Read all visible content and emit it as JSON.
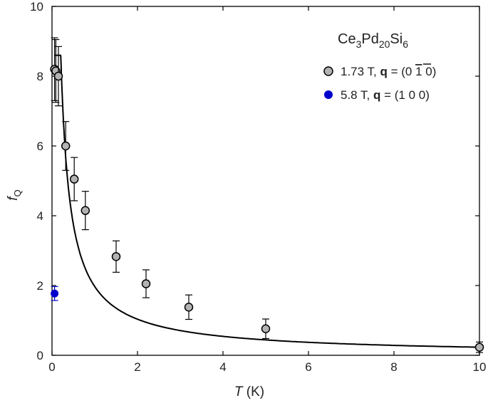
{
  "chart_data": {
    "type": "scatter",
    "xlabel": {
      "italic": "T",
      "rest": " (K)"
    },
    "ylabel": {
      "italic": "f",
      "sub": "Q"
    },
    "xlim": [
      0,
      10
    ],
    "ylim": [
      0,
      10
    ],
    "xticks": [
      0,
      2,
      4,
      6,
      8,
      10
    ],
    "yticks": [
      0,
      2,
      4,
      6,
      8,
      10
    ],
    "legend_title": {
      "base": "Ce",
      "s1": "3",
      "m1": "Pd",
      "s2": "20",
      "m2": "Si",
      "s3": "6"
    },
    "legend_placement": "top-right",
    "series": [
      {
        "label": {
          "prefix": "1.73 T, ",
          "bold": "q",
          "suffix_open": " = (0 ",
          "overline": "1",
          "suffix_close": " 0)"
        },
        "color": "#b3b3b3",
        "x": [
          0.06,
          0.09,
          0.15,
          0.32,
          0.52,
          0.78,
          1.5,
          2.2,
          3.2,
          5.0,
          10.0
        ],
        "y": [
          8.2,
          8.15,
          8.0,
          6.0,
          5.05,
          4.15,
          2.83,
          2.05,
          1.38,
          0.76,
          0.23
        ],
        "yerr": [
          0.9,
          0.9,
          0.85,
          0.7,
          0.62,
          0.55,
          0.45,
          0.4,
          0.35,
          0.28,
          0.15
        ]
      },
      {
        "label": {
          "prefix": "5.8 T, ",
          "bold": "q",
          "suffix_open": " = (1 0 0)",
          "overline": "",
          "suffix_close": ""
        },
        "color": "#0000cc",
        "x": [
          0.06
        ],
        "y": [
          1.77
        ],
        "yerr": [
          0.2
        ]
      }
    ],
    "fit_curve": true
  }
}
